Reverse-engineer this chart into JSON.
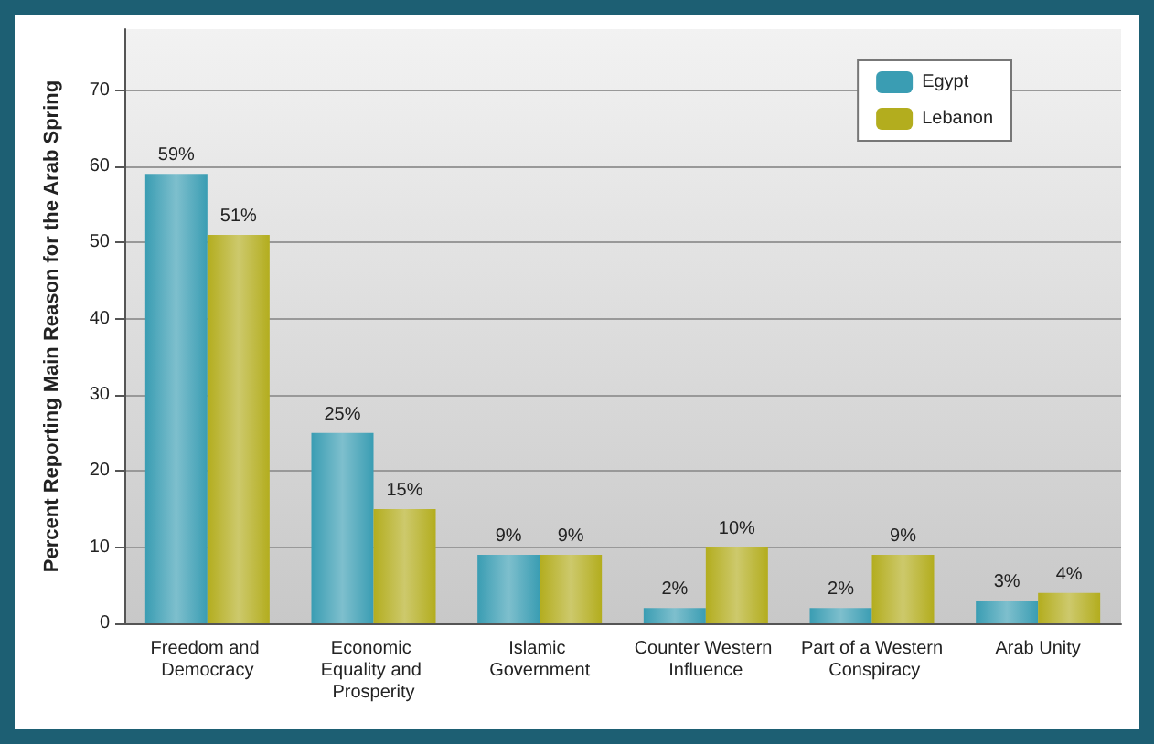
{
  "chart_data": {
    "type": "bar",
    "ylabel": "Percent Reporting Main Reason for the Arab Spring",
    "categories": [
      "Freedom and Democracy",
      "Economic Equality and Prosperity",
      "Islamic Government",
      "Counter Western Influence",
      "Part of a Western Conspiracy",
      "Arab Unity"
    ],
    "series": [
      {
        "name": "Egypt",
        "color": "#3a9db3",
        "values": [
          59,
          25,
          9,
          2,
          2,
          3
        ],
        "value_labels": [
          "59%",
          "25%",
          "9%",
          "2%",
          "2%",
          "3%"
        ]
      },
      {
        "name": "Lebanon",
        "color": "#b3ad1e",
        "values": [
          51,
          15,
          9,
          10,
          9,
          4
        ],
        "value_labels": [
          "51%",
          "15%",
          "9%",
          "10%",
          "9%",
          "4%"
        ]
      }
    ],
    "ylim": [
      0,
      78
    ],
    "yticks": [
      0,
      10,
      20,
      30,
      40,
      50,
      60,
      70
    ],
    "grid": "y",
    "legend": "top right"
  }
}
